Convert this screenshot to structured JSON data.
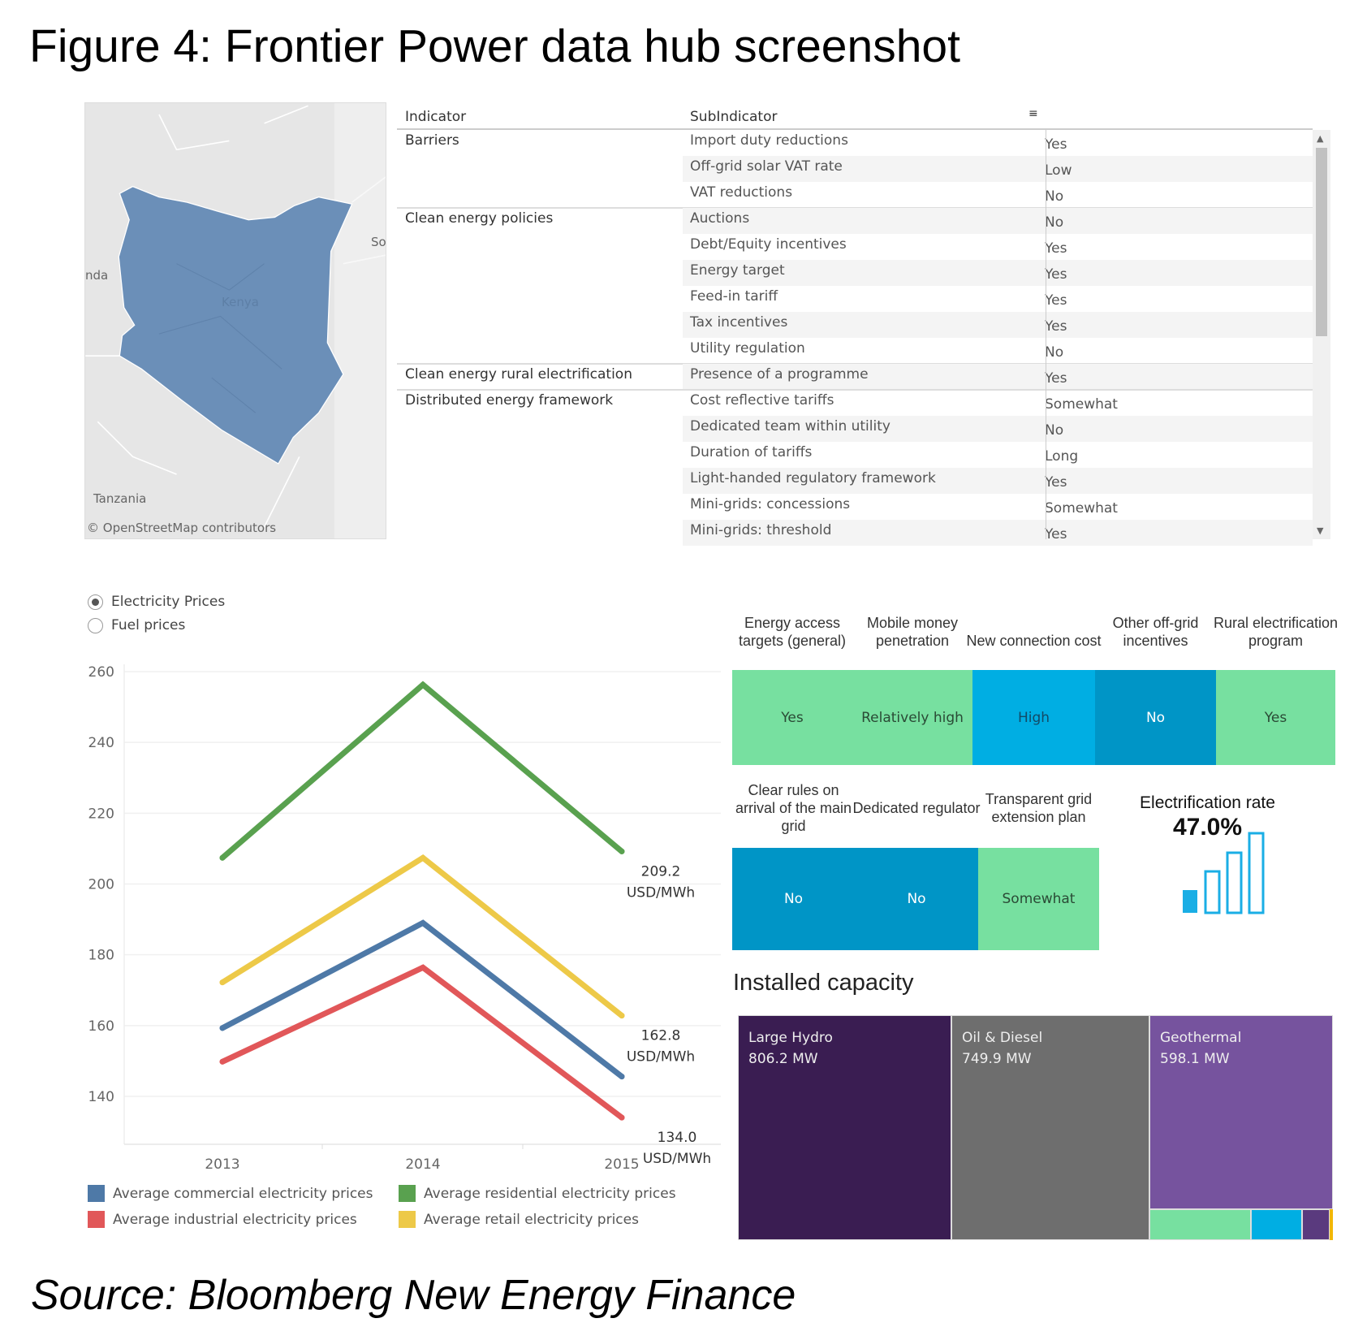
{
  "title": "Figure 4: Frontier Power data hub screenshot",
  "source": "Source: Bloomberg New Energy Finance",
  "map": {
    "country": "Kenya",
    "labels": {
      "kenya": "Kenya",
      "tanzania": "Tanzania",
      "uganda_partial": "nda",
      "somalia_partial": "So"
    },
    "attribution": "© OpenStreetMap contributors",
    "fill": "#6b8fb8"
  },
  "table": {
    "headers": {
      "indicator": "Indicator",
      "subindicator": "SubIndicator"
    },
    "groups": [
      {
        "indicator": "Barriers",
        "rows": [
          [
            "Import duty reductions",
            "Yes"
          ],
          [
            "Off-grid solar VAT rate",
            "Low"
          ],
          [
            "VAT reductions",
            "No"
          ]
        ]
      },
      {
        "indicator": "Clean energy policies",
        "rows": [
          [
            "Auctions",
            "No"
          ],
          [
            "Debt/Equity incentives",
            "Yes"
          ],
          [
            "Energy target",
            "Yes"
          ],
          [
            "Feed-in tariff",
            "Yes"
          ],
          [
            "Tax incentives",
            "Yes"
          ],
          [
            "Utility regulation",
            "No"
          ]
        ]
      },
      {
        "indicator": "Clean energy rural electrification",
        "rows": [
          [
            "Presence of a programme",
            "Yes"
          ]
        ]
      },
      {
        "indicator": "Distributed energy framework",
        "rows": [
          [
            "Cost reflective tariffs",
            "Somewhat"
          ],
          [
            "Dedicated team within utility",
            "No"
          ],
          [
            "Duration of tariffs",
            "Long"
          ],
          [
            "Light-handed regulatory framework",
            "Yes"
          ],
          [
            "Mini-grids: concessions",
            "Somewhat"
          ],
          [
            "Mini-grids: threshold",
            "Yes"
          ]
        ]
      }
    ]
  },
  "price_toggle": {
    "options": [
      {
        "label": "Electricity Prices",
        "selected": true
      },
      {
        "label": "Fuel prices",
        "selected": false
      }
    ]
  },
  "chart_data": {
    "type": "line",
    "x": [
      "2013",
      "2014",
      "2015"
    ],
    "ylim": [
      128,
      262
    ],
    "yticks": [
      140,
      160,
      180,
      200,
      220,
      240,
      260
    ],
    "grid": true,
    "legend_placement": "bottom",
    "series": [
      {
        "name": "Average residential electricity prices",
        "color": "#59a14f",
        "values": [
          207.4,
          256.3,
          209.2
        ],
        "end_label": "209.2",
        "unit": "USD/MWh"
      },
      {
        "name": "Average retail electricity prices",
        "color": "#edc948",
        "values": [
          172.2,
          207.4,
          162.8
        ],
        "end_label": "162.8",
        "unit": "USD/MWh"
      },
      {
        "name": "Average commercial electricity prices",
        "color": "#4e79a7",
        "values": [
          159.3,
          189.0,
          145.6
        ]
      },
      {
        "name": "Average industrial electricity prices",
        "color": "#e15759",
        "values": [
          149.8,
          176.4,
          134.0
        ],
        "end_label": "134.0",
        "unit": "USD/MWh"
      }
    ],
    "legend_order": [
      "Average commercial electricity prices",
      "Average residential electricity prices",
      "Average industrial electricity prices",
      "Average retail electricity prices"
    ]
  },
  "tiles_row1": [
    {
      "label": "Energy access targets (general)",
      "value": "Yes",
      "color": "#77e0a0",
      "text": "#2a4a35"
    },
    {
      "label": "Mobile money penetration",
      "value": "Relatively high",
      "color": "#77e0a0",
      "text": "#2a4a35"
    },
    {
      "label": "New connection cost",
      "value": "High",
      "color": "#00aee3",
      "text": "#124a66"
    },
    {
      "label": "Other off-grid incentives",
      "value": "No",
      "color": "#0095c6",
      "text": "#ffffff"
    },
    {
      "label": "Rural electrification program",
      "value": "Yes",
      "color": "#77e0a0",
      "text": "#2a4a35"
    }
  ],
  "tiles_row2": [
    {
      "label": "Clear rules on arrival of the main grid",
      "value": "No",
      "color": "#0095c6",
      "text": "#ffffff"
    },
    {
      "label": "Dedicated regulator",
      "value": "No",
      "color": "#0095c6",
      "text": "#ffffff"
    },
    {
      "label": "Transparent grid extension plan",
      "value": "Somewhat",
      "color": "#77e0a0",
      "text": "#2a4a35"
    }
  ],
  "electrification": {
    "label": "Electrification rate",
    "value": "47.0%",
    "filled_bars": 1,
    "total_bars": 4,
    "color": "#1aaee5"
  },
  "installed_capacity": {
    "title": "Installed capacity",
    "items": [
      {
        "name": "Large Hydro",
        "value": "806.2 MW",
        "color": "#3a1d52"
      },
      {
        "name": "Oil & Diesel",
        "value": "749.9 MW",
        "color": "#6e6e6e"
      },
      {
        "name": "Geothermal",
        "value": "598.1 MW",
        "color": "#76539e"
      }
    ],
    "unlabeled_colors": [
      "#77e0a0",
      "#00aee3",
      "#5a3a7e",
      "#f2b705"
    ]
  }
}
